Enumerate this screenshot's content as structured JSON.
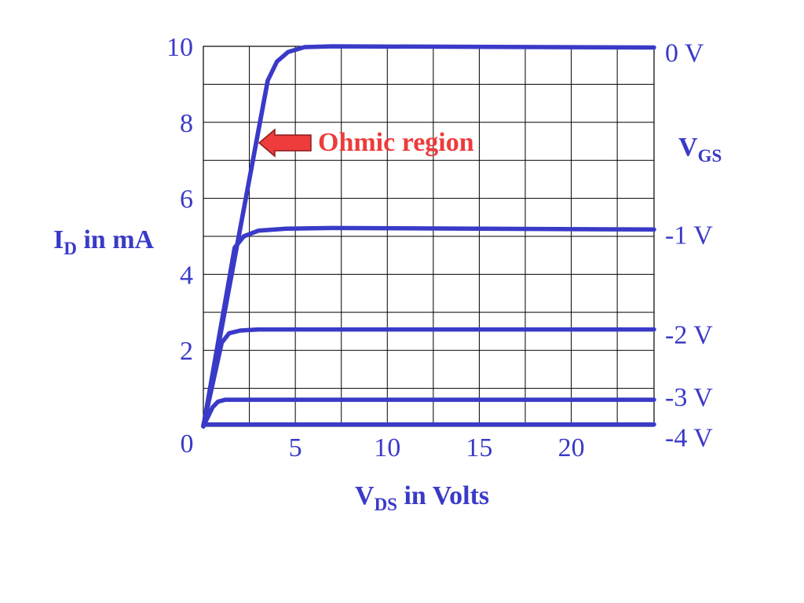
{
  "chart_data": {
    "type": "line",
    "xlabel": {
      "main": "V",
      "sub": "DS",
      "rest": " in Volts"
    },
    "ylabel": {
      "main": "I",
      "sub": "D",
      "rest": " in mA"
    },
    "legend_title": {
      "main": "V",
      "sub": "GS"
    },
    "xlim": [
      0,
      24.5
    ],
    "ylim": [
      0,
      10
    ],
    "grid": true,
    "x_ticks": [
      {
        "value": 0,
        "label": "0"
      },
      {
        "value": 5,
        "label": "5"
      },
      {
        "value": 10,
        "label": "10"
      },
      {
        "value": 15,
        "label": "15"
      },
      {
        "value": 20,
        "label": "20"
      }
    ],
    "y_ticks": [
      {
        "value": 2,
        "label": "2"
      },
      {
        "value": 4,
        "label": "4"
      },
      {
        "value": 6,
        "label": "6"
      },
      {
        "value": 8,
        "label": "8"
      },
      {
        "value": 10,
        "label": "10"
      }
    ],
    "series": [
      {
        "name": "0 V",
        "x": [
          0,
          3.5,
          4.0,
          4.6,
          5.5,
          7,
          24.5
        ],
        "y": [
          0,
          9.1,
          9.6,
          9.85,
          9.98,
          10.0,
          9.97
        ]
      },
      {
        "name": "-1 V",
        "x": [
          0,
          1.7,
          2.2,
          3.0,
          4.5,
          7,
          24.5
        ],
        "y": [
          0,
          4.7,
          5.0,
          5.15,
          5.2,
          5.22,
          5.18
        ]
      },
      {
        "name": "-2 V",
        "x": [
          0,
          1.0,
          1.4,
          2.0,
          3.0,
          24.5
        ],
        "y": [
          0,
          2.2,
          2.45,
          2.52,
          2.55,
          2.55
        ]
      },
      {
        "name": "-3 V",
        "x": [
          0,
          0.5,
          0.8,
          1.2,
          24.5
        ],
        "y": [
          0,
          0.5,
          0.65,
          0.7,
          0.7
        ]
      },
      {
        "name": "-4 V",
        "x": [
          0,
          24.5
        ],
        "y": [
          0.05,
          0.05
        ]
      }
    ],
    "pinch_line": {
      "x": [
        0,
        3.5
      ],
      "y": [
        0,
        9.1
      ]
    },
    "annotations": [
      {
        "text": "Ohmic region",
        "points_to": {
          "x": 3.0,
          "y": 7.5
        },
        "color": "#ee3b3b"
      }
    ],
    "colors": {
      "curve": "#3a3ac8",
      "text": "#3a3ac8",
      "grid": "#000000",
      "annotation": "#ee3b3b"
    }
  }
}
